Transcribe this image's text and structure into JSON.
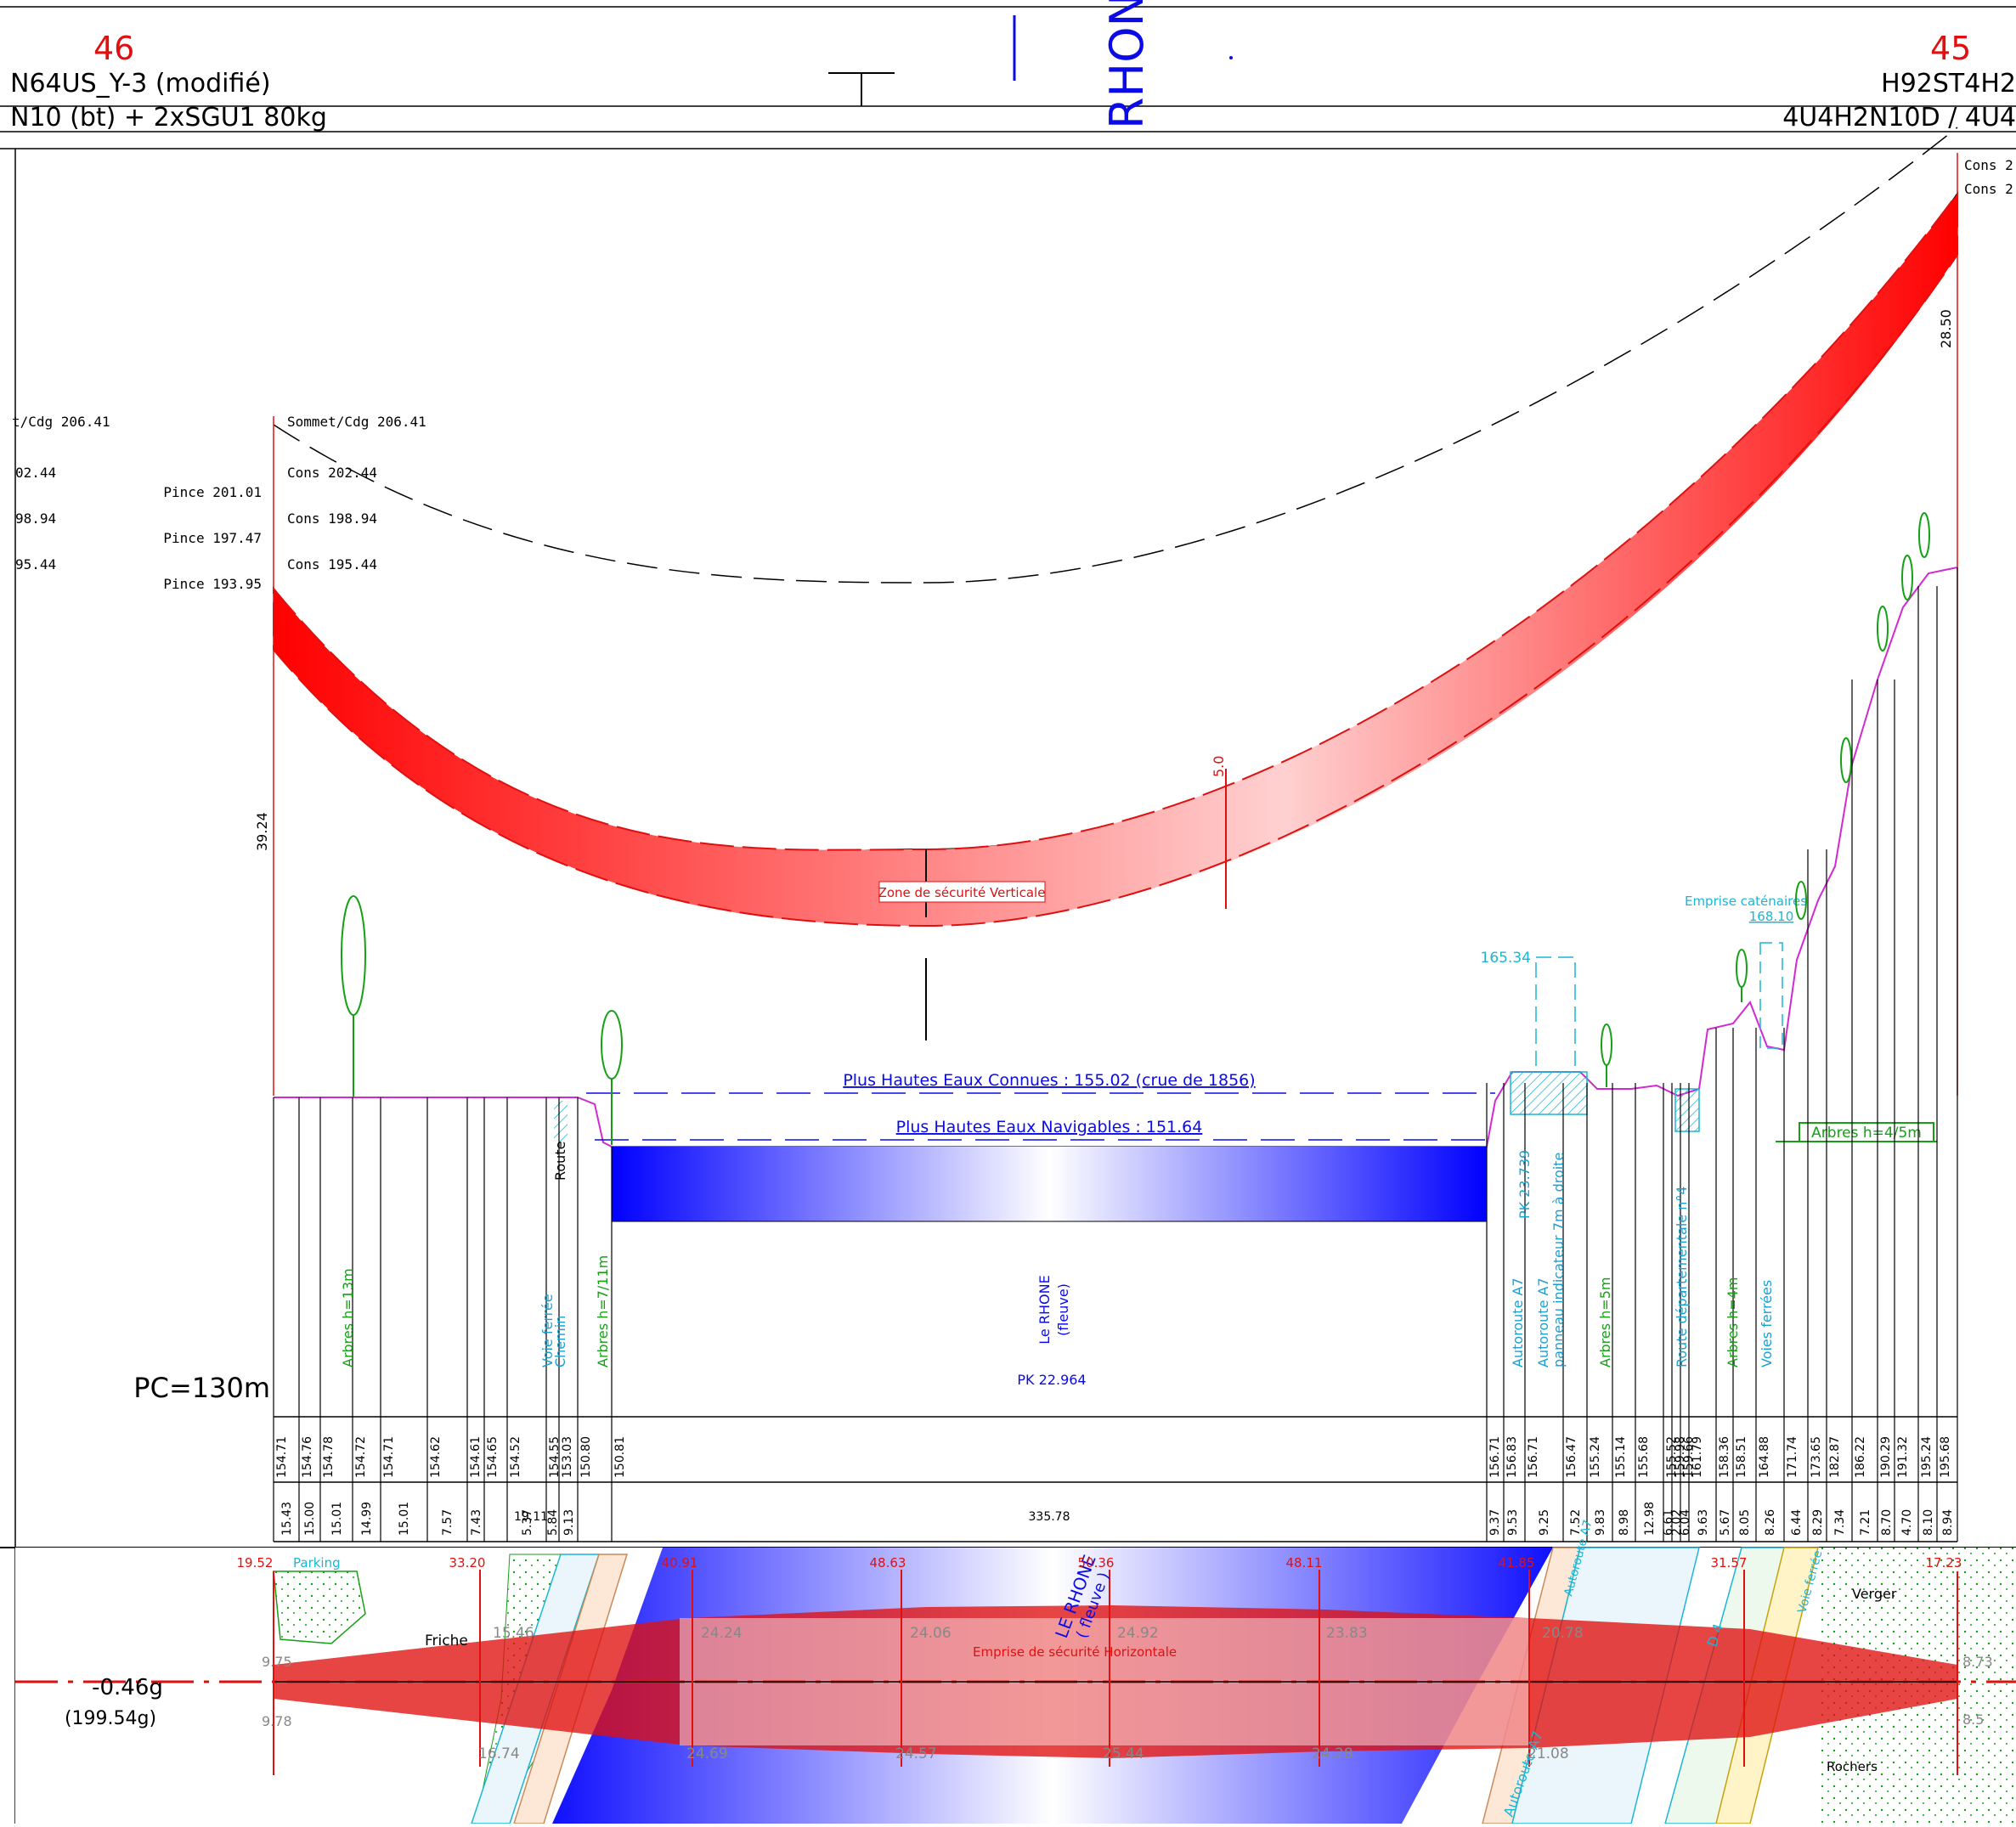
{
  "header": {
    "left_number": "46",
    "right_number": "45",
    "left_tower_type": "N64US_Y-3 (modifié)",
    "left_conductor": "N10 (bt) + 2xSGU1 80kg",
    "right_tower_type": "H92ST4H2",
    "right_conductor": "4U4H2N10D / 4U4",
    "river_title": "RHON"
  },
  "profile": {
    "sommet_left": "Sommet/Cdg  206.41",
    "sommet_left_clip": "t/Cdg  206.41",
    "cons_labels": [
      "Cons  202.44",
      "Cons  198.94",
      "Cons  195.44"
    ],
    "cons_clip": [
      "02.44",
      "98.94",
      "95.44"
    ],
    "pince_labels": [
      "Pince  201.01",
      "Pince  197.47",
      "Pince  193.95"
    ],
    "right_cons": [
      "Cons  2",
      "Cons  2"
    ],
    "dim_left": "39.24",
    "dim_right": "28.50",
    "dim_mid": "5.0",
    "zone_label": "Zone de sécurité Verticale",
    "phec": "Plus Hautes Eaux Connues : 155.02 (crue de 1856)",
    "phen": "Plus Hautes Eaux Navigables : 151.64",
    "pc": "PC=130m",
    "emprise_caten": "Emprise  caténaires",
    "emprise_val": "168.10",
    "cyan_elev": "165.34",
    "arbres_box": "Arbres  h=4/5m",
    "river_name": "Le RHONE",
    "river_sub": "(fleuve)",
    "river_pk": "PK 22.964",
    "vertical_labels": [
      {
        "text": "Arbres  h=13m",
        "color": "#16a016"
      },
      {
        "text": "Voie  ferrée",
        "color": "#1aa0d0"
      },
      {
        "text": "Chemin",
        "color": "#1aa0d0"
      },
      {
        "text": "Route",
        "color": "#000000"
      },
      {
        "text": "Arbres  h=7/11m",
        "color": "#16a016"
      },
      {
        "text": "Autoroute A7",
        "color": "#1aa0d0"
      },
      {
        "text": "PK 23.739",
        "color": "#1aa0d0"
      },
      {
        "text": "Autoroute A7",
        "color": "#1aa0d0"
      },
      {
        "text": "panneau  indicateur  7m  à  droite",
        "color": "#1aa0d0"
      },
      {
        "text": "Arbres  h=5m",
        "color": "#16a016"
      },
      {
        "text": "Route départementale n°4",
        "color": "#1aa0d0"
      },
      {
        "text": "Arbres  h=4m",
        "color": "#16a016"
      },
      {
        "text": "Voies  ferrées",
        "color": "#1aa0d0"
      }
    ],
    "elevations": [
      "154.71",
      "154.76",
      "154.78",
      "154.72",
      "154.71",
      "154.62",
      "154.61",
      "154.65",
      "154.52",
      "154.55",
      "153.03",
      "150.80",
      "150.81",
      "156.71",
      "156.83",
      "156.71",
      "156.47",
      "155.24",
      "155.14",
      "155.68",
      "155.52",
      "159.98",
      "159.66",
      "161.79",
      "158.36",
      "158.51",
      "164.88",
      "171.74",
      "173.65",
      "182.87",
      "186.22",
      "190.29",
      "191.32",
      "195.24",
      "195.68"
    ],
    "distances": [
      "15.43",
      "15.00",
      "15.01",
      "14.99",
      "15.01",
      "7.57",
      "7.43",
      "19.11",
      "5.37",
      "5.84",
      "9.13",
      "335.78",
      "9.37",
      "9.53",
      "9.25",
      "7.52",
      "9.83",
      "8.98",
      "12.98",
      "6.61",
      "2.02",
      "6.04",
      "9.63",
      "5.67",
      "8.05",
      "8.26",
      "6.44",
      "8.29",
      "7.34",
      "7.21",
      "8.70",
      "4.70",
      "8.10",
      "8.94"
    ]
  },
  "plan": {
    "angle": "-0.46g",
    "angle_sub": "(199.54g)",
    "parking": "Parking",
    "friche": "Friche",
    "verger": "Verger",
    "rochers": "Rochers",
    "emprise_h": "Emprise   de  sécurité   Horizontale",
    "river_plan": "LE RHONE",
    "river_plan_sub": "( fleuve )",
    "autoroute": "Autoroute A7",
    "autoroute_top": "Autoroute A7",
    "route_d4": "D 4",
    "voie_ferree": "Voie ferrée",
    "red_widths": [
      "19.52",
      "33.20",
      "40.91",
      "48.63",
      "50.36",
      "48.11",
      "41.85",
      "31.57",
      "17.23"
    ],
    "half_top": [
      "15.46",
      "24.24",
      "24.06",
      "24.92",
      "23.83",
      "20.78"
    ],
    "half_bot": [
      "16.74",
      "24.69",
      "24.57",
      "25.44",
      "24.28",
      "21.08"
    ],
    "edge_top_left": "9.75",
    "edge_bot_left": "9.78",
    "edge_top_right": "8.73",
    "edge_bot_right": "8.5"
  },
  "colors": {
    "red": "#e01010",
    "blue": "#0b0be6",
    "cyan": "#1ab6d6",
    "green": "#16a016",
    "magenta": "#d22ad2"
  }
}
